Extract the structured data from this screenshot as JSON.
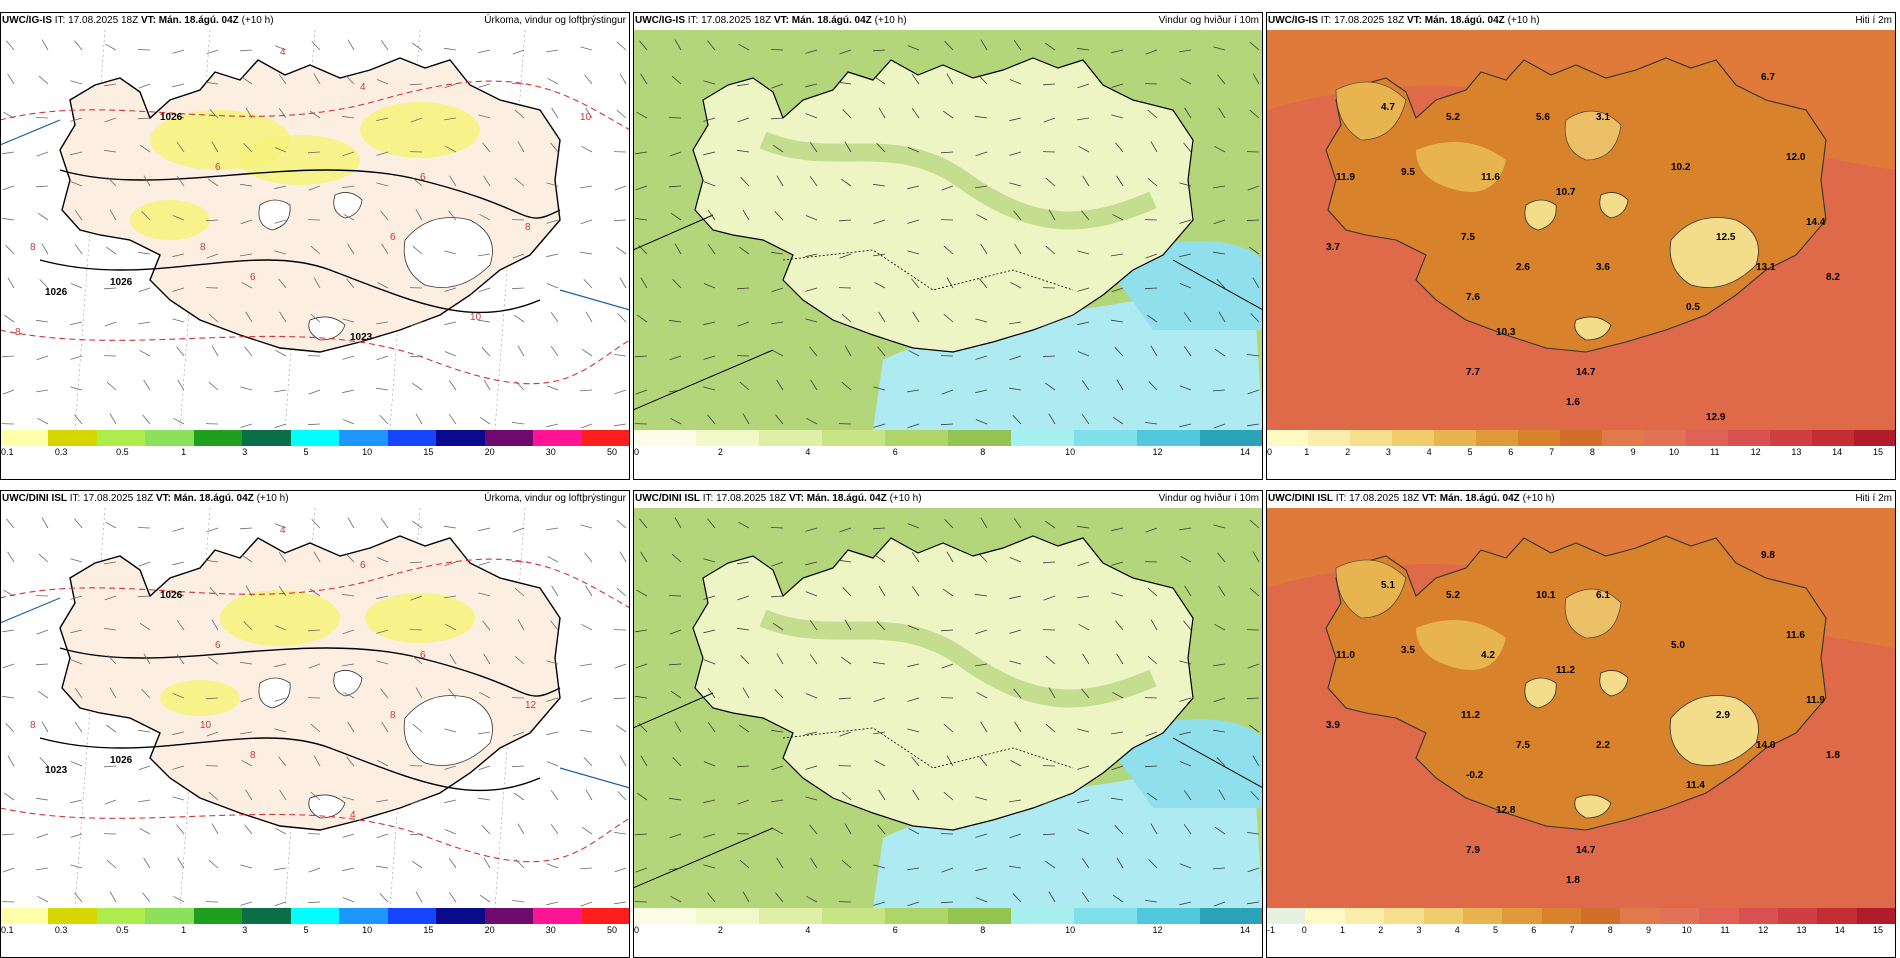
{
  "panels": [
    {
      "id": "p1",
      "kind": "precip",
      "model": "UWC/IG-IS",
      "init": "IT: 17.08.2025 18Z",
      "vt_label": "VT:",
      "vt": "Mán. 18.ágú. 04Z",
      "lead": "(+10 h)",
      "title": "Úrkoma, vindur og loftþrýstingur",
      "colorbar": {
        "colors": [
          "#ffffaa",
          "#d6d600",
          "#adec4d",
          "#8de05a",
          "#1ea01e",
          "#0a6e46",
          "#00ffff",
          "#1e96ff",
          "#1446ff",
          "#0a0a8c",
          "#6e0a6e",
          "#ff1493",
          "#ff1e1e"
        ],
        "labels": [
          "0.1",
          "0.3",
          "0.5",
          "1",
          "3",
          "5",
          "10",
          "15",
          "20",
          "30",
          "50"
        ]
      },
      "map_labels": [
        "1026",
        "1026",
        "1026",
        "1023",
        "4",
        "4",
        "6",
        "6",
        "6",
        "6",
        "8",
        "8",
        "8",
        "8",
        "10",
        "10"
      ]
    },
    {
      "id": "p2",
      "kind": "wind",
      "model": "UWC/IG-IS",
      "init": "IT: 17.08.2025 18Z",
      "vt_label": "VT:",
      "vt": "Mán. 18.ágú. 04Z",
      "lead": "(+10 h)",
      "title": "Vindur og hviður í 10m",
      "colorbar": {
        "colors": [
          "#fbfde6",
          "#f2f9c8",
          "#dff0a6",
          "#c7e584",
          "#aed568",
          "#93c452",
          "#a7f0f0",
          "#80e0ea",
          "#52c8dc",
          "#2aa3b8"
        ],
        "labels": [
          "0",
          "2",
          "4",
          "6",
          "8",
          "10",
          "12",
          "14"
        ]
      },
      "map_labels": []
    },
    {
      "id": "p3",
      "kind": "temp",
      "model": "UWC/IG-IS",
      "init": "IT: 17.08.2025 18Z",
      "vt_label": "VT:",
      "vt": "Mán. 18.ágú. 04Z",
      "lead": "(+10 h)",
      "title": "Hiti í 2m",
      "colorbar": {
        "colors": [
          "#fff9c4",
          "#fbeeaa",
          "#f6df8c",
          "#f0cc6c",
          "#e8b450",
          "#e09a3a",
          "#d8822c",
          "#d06e2a",
          "#e07a4a",
          "#e27255",
          "#df6255",
          "#d95050",
          "#cf3f42",
          "#c52d35",
          "#b01c2a"
        ],
        "labels": [
          "0",
          "1",
          "2",
          "3",
          "4",
          "5",
          "6",
          "7",
          "8",
          "9",
          "10",
          "11",
          "12",
          "13",
          "14",
          "15"
        ]
      },
      "map_labels": [
        "4.7",
        "5.2",
        "5.6",
        "3.1",
        "6.7",
        "11.9",
        "9.5",
        "11.6",
        "10.7",
        "10.2",
        "12.0",
        "14.4",
        "7.5",
        "3.7",
        "2.6",
        "3.6",
        "12.5",
        "13.1",
        "8.2",
        "7.6",
        "10.3",
        "0.5",
        "7.7",
        "14.7",
        "1.6",
        "12.9"
      ]
    },
    {
      "id": "p4",
      "kind": "precip",
      "model": "UWC/DINI ISL",
      "init": "IT: 17.08.2025 18Z",
      "vt_label": "VT:",
      "vt": "Mán. 18.ágú. 04Z",
      "lead": "(+10 h)",
      "title": "Úrkoma, vindur og loftþrýstingur",
      "colorbar": {
        "colors": [
          "#ffffaa",
          "#d6d600",
          "#adec4d",
          "#8de05a",
          "#1ea01e",
          "#0a6e46",
          "#00ffff",
          "#1e96ff",
          "#1446ff",
          "#0a0a8c",
          "#6e0a6e",
          "#ff1493",
          "#ff1e1e"
        ],
        "labels": [
          "0.1",
          "0.3",
          "0.5",
          "1",
          "3",
          "5",
          "10",
          "15",
          "20",
          "30",
          "50"
        ]
      },
      "map_labels": [
        "1026",
        "1026",
        "1023",
        "4",
        "4",
        "6",
        "6",
        "6",
        "8",
        "8",
        "8",
        "10",
        "12"
      ]
    },
    {
      "id": "p5",
      "kind": "wind",
      "model": "UWC/DINI ISL",
      "init": "IT: 17.08.2025 18Z",
      "vt_label": "VT:",
      "vt": "Mán. 18.ágú. 04Z",
      "lead": "(+10 h)",
      "title": "Vindur og hviður í 10m",
      "colorbar": {
        "colors": [
          "#fbfde6",
          "#f2f9c8",
          "#dff0a6",
          "#c7e584",
          "#aed568",
          "#93c452",
          "#a7f0f0",
          "#80e0ea",
          "#52c8dc",
          "#2aa3b8"
        ],
        "labels": [
          "0",
          "2",
          "4",
          "6",
          "8",
          "10",
          "12",
          "14"
        ]
      },
      "map_labels": []
    },
    {
      "id": "p6",
      "kind": "temp",
      "model": "UWC/DINI ISL",
      "init": "IT: 17.08.2025 18Z",
      "vt_label": "VT:",
      "vt": "Mán. 18.ágú. 04Z",
      "lead": "(+10 h)",
      "title": "Hiti í 2m",
      "colorbar": {
        "colors": [
          "#e8f0e0",
          "#fff9c4",
          "#fbeeaa",
          "#f6df8c",
          "#f0cc6c",
          "#e8b450",
          "#e09a3a",
          "#d8822c",
          "#d06e2a",
          "#e07a4a",
          "#e27255",
          "#df6255",
          "#d95050",
          "#cf3f42",
          "#c52d35",
          "#b01c2a"
        ],
        "labels": [
          "-1",
          "0",
          "1",
          "2",
          "3",
          "4",
          "5",
          "6",
          "7",
          "8",
          "9",
          "10",
          "11",
          "12",
          "13",
          "14",
          "15"
        ]
      },
      "map_labels": [
        "5.1",
        "5.2",
        "10.1",
        "6.1",
        "9.8",
        "11.0",
        "3.5",
        "4.2",
        "11.2",
        "5.0",
        "11.6",
        "11.9",
        "11.2",
        "3.9",
        "7.5",
        "2.2",
        "2.9",
        "14.0",
        "1.8",
        "-0.2",
        "12.8",
        "11.4",
        "7.9",
        "14.7",
        "1.8"
      ]
    }
  ]
}
